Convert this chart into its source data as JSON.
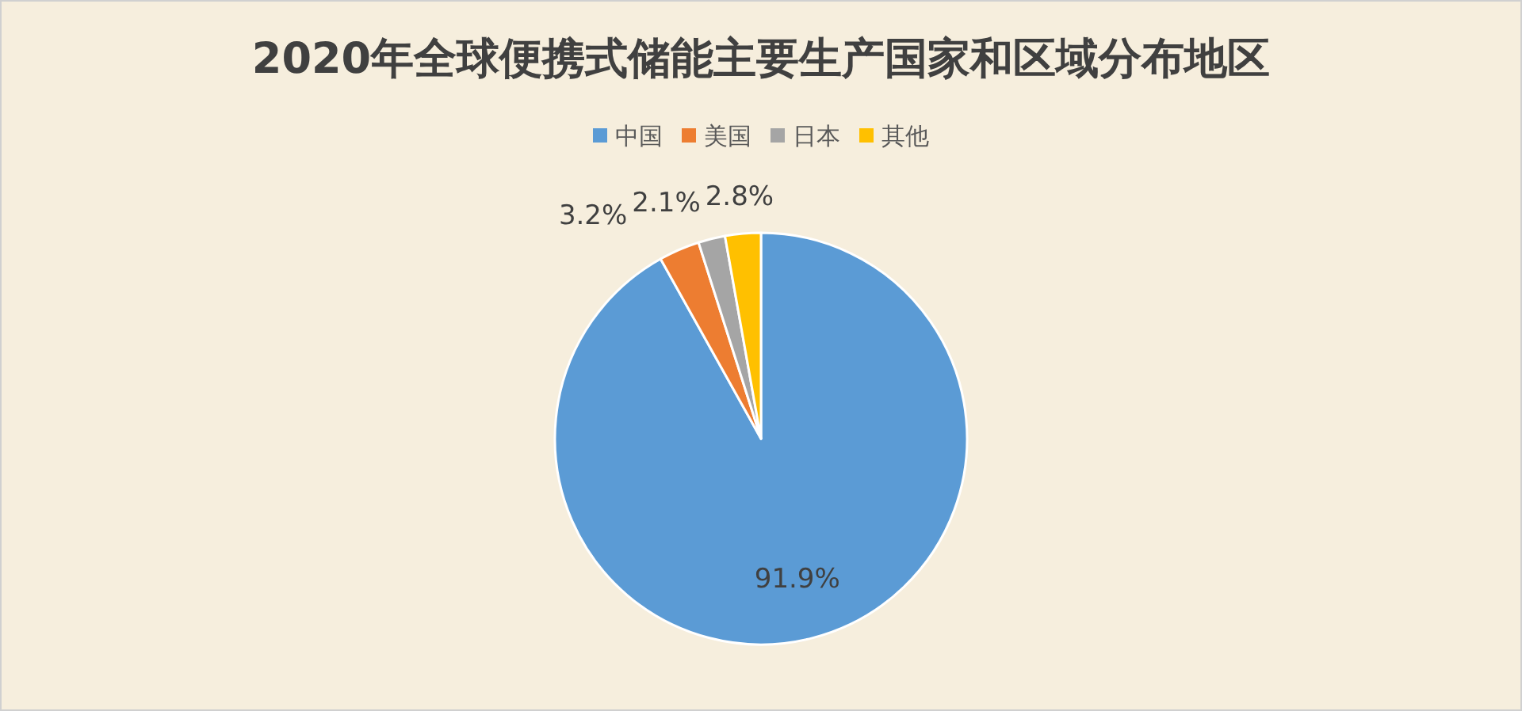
{
  "chart_data": {
    "type": "pie",
    "title": "2020年全球便携式储能主要生产国家和区域分布地区",
    "categories": [
      "中国",
      "美国",
      "日本",
      "其他"
    ],
    "values": [
      91.9,
      3.2,
      2.1,
      2.8
    ],
    "colors": [
      "#5b9bd5",
      "#ed7d31",
      "#a5a5a5",
      "#ffc000"
    ],
    "value_labels": [
      "91.9%",
      "3.2%",
      "2.1%",
      "2.8%"
    ],
    "legend": "top"
  }
}
